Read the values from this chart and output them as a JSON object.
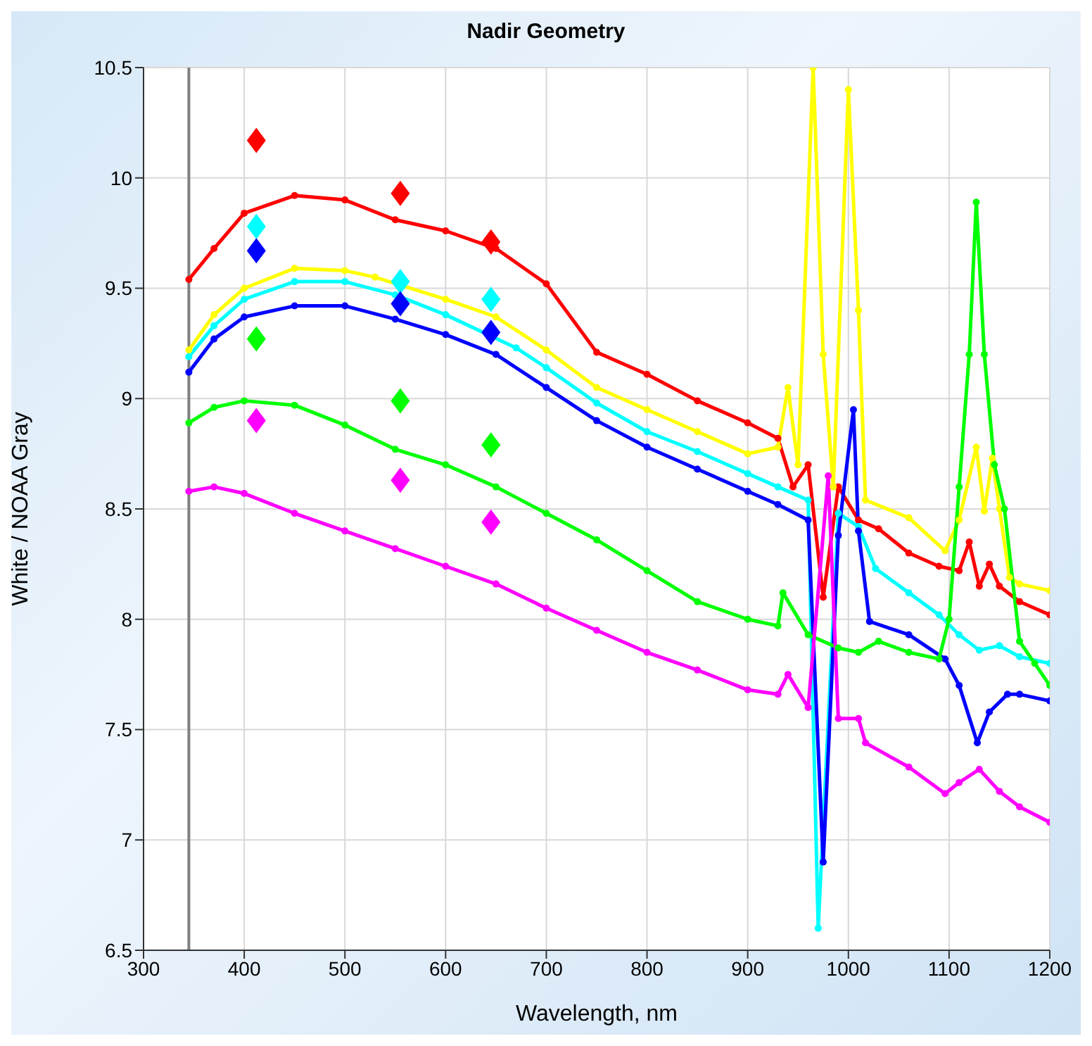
{
  "chart_data": {
    "type": "line",
    "title": "Nadir Geometry",
    "xlabel": "Wavelength, nm",
    "ylabel": "White / NOAA Gray",
    "xlim": [
      300,
      1200
    ],
    "ylim": [
      6.5,
      10.5
    ],
    "xticks": [
      300,
      400,
      500,
      600,
      700,
      800,
      900,
      1000,
      1100,
      1200
    ],
    "yticks": [
      6.5,
      7,
      7.5,
      8,
      8.5,
      9,
      9.5,
      10,
      10.5
    ],
    "grid": true,
    "legend": false,
    "marker": "circle",
    "line_style": "solid",
    "ref_lines": [
      {
        "axis": "x",
        "value": 345,
        "label": null,
        "color": "#808080"
      }
    ],
    "series": [
      {
        "color": "#ff0000",
        "x": [
          345,
          370,
          400,
          450,
          500,
          550,
          600,
          650,
          700,
          750,
          800,
          850,
          900,
          930,
          945,
          960,
          975,
          990,
          1010,
          1030,
          1060,
          1090,
          1110,
          1120,
          1130,
          1140,
          1150,
          1170,
          1200
        ],
        "values": [
          9.54,
          9.68,
          9.84,
          9.92,
          9.9,
          9.81,
          9.76,
          9.68,
          9.52,
          9.21,
          9.11,
          8.99,
          8.89,
          8.82,
          8.6,
          8.7,
          8.1,
          8.6,
          8.45,
          8.41,
          8.3,
          8.24,
          8.22,
          8.35,
          8.15,
          8.25,
          8.15,
          8.08,
          8.02
        ]
      },
      {
        "color": "#ffff00",
        "x": [
          345,
          370,
          400,
          450,
          500,
          530,
          600,
          650,
          700,
          750,
          800,
          850,
          900,
          930,
          940,
          950,
          965,
          975,
          985,
          1000,
          1010,
          1017,
          1060,
          1096,
          1110,
          1127,
          1135,
          1143,
          1150,
          1160,
          1170,
          1200
        ],
        "values": [
          9.22,
          9.38,
          9.5,
          9.59,
          9.58,
          9.55,
          9.45,
          9.37,
          9.22,
          9.05,
          8.95,
          8.85,
          8.75,
          8.78,
          9.05,
          8.7,
          10.5,
          9.2,
          8.6,
          10.4,
          9.4,
          8.54,
          8.46,
          8.31,
          8.45,
          8.78,
          8.49,
          8.73,
          8.5,
          8.19,
          8.16,
          8.13
        ]
      },
      {
        "color": "#00ffff",
        "x": [
          345,
          370,
          400,
          450,
          500,
          550,
          600,
          670,
          700,
          750,
          800,
          850,
          900,
          930,
          960,
          970,
          990,
          1010,
          1027,
          1060,
          1090,
          1110,
          1130,
          1150,
          1170,
          1200
        ],
        "values": [
          9.19,
          9.33,
          9.45,
          9.53,
          9.53,
          9.47,
          9.38,
          9.23,
          9.14,
          8.98,
          8.85,
          8.76,
          8.66,
          8.6,
          8.54,
          6.6,
          8.48,
          8.42,
          8.23,
          8.12,
          8.02,
          7.93,
          7.86,
          7.88,
          7.83,
          7.8
        ]
      },
      {
        "color": "#0000ff",
        "x": [
          345,
          370,
          400,
          450,
          500,
          550,
          600,
          650,
          700,
          750,
          800,
          850,
          900,
          930,
          960,
          975,
          990,
          1005,
          1010,
          1021,
          1060,
          1096,
          1110,
          1128,
          1140,
          1158,
          1170,
          1200
        ],
        "values": [
          9.12,
          9.27,
          9.37,
          9.42,
          9.42,
          9.36,
          9.29,
          9.2,
          9.05,
          8.9,
          8.78,
          8.68,
          8.58,
          8.52,
          8.45,
          6.9,
          8.38,
          8.95,
          8.4,
          7.99,
          7.93,
          7.82,
          7.7,
          7.44,
          7.58,
          7.66,
          7.66,
          7.63
        ]
      },
      {
        "color": "#00ff00",
        "x": [
          345,
          370,
          400,
          450,
          500,
          550,
          600,
          650,
          700,
          750,
          800,
          850,
          900,
          930,
          935,
          960,
          990,
          1010,
          1030,
          1060,
          1090,
          1100,
          1110,
          1120,
          1127,
          1135,
          1145,
          1155,
          1170,
          1185,
          1200
        ],
        "values": [
          8.89,
          8.96,
          8.99,
          8.97,
          8.88,
          8.77,
          8.7,
          8.6,
          8.48,
          8.36,
          8.22,
          8.08,
          8.0,
          7.97,
          8.12,
          7.93,
          7.87,
          7.85,
          7.9,
          7.85,
          7.82,
          8.0,
          8.6,
          9.2,
          9.89,
          9.2,
          8.7,
          8.5,
          7.9,
          7.8,
          7.7
        ]
      },
      {
        "color": "#ff00ff",
        "x": [
          345,
          370,
          400,
          450,
          500,
          550,
          600,
          650,
          700,
          750,
          800,
          850,
          900,
          930,
          940,
          960,
          980,
          990,
          1010,
          1017,
          1060,
          1096,
          1110,
          1130,
          1150,
          1170,
          1200
        ],
        "values": [
          8.58,
          8.6,
          8.57,
          8.48,
          8.4,
          8.32,
          8.24,
          8.16,
          8.05,
          7.95,
          7.85,
          7.77,
          7.68,
          7.66,
          7.75,
          7.6,
          8.65,
          7.55,
          7.55,
          7.44,
          7.33,
          7.21,
          7.26,
          7.32,
          7.22,
          7.15,
          7.08
        ]
      },
      {
        "type": "scatter",
        "marker": "diamond",
        "color": "#ff0000",
        "x": [
          412,
          555,
          645
        ],
        "values": [
          10.17,
          9.93,
          9.71
        ]
      },
      {
        "type": "scatter",
        "marker": "diamond",
        "color": "#00ffff",
        "x": [
          412,
          555,
          645
        ],
        "values": [
          9.78,
          9.53,
          9.45
        ]
      },
      {
        "type": "scatter",
        "marker": "diamond",
        "color": "#0000ff",
        "x": [
          412,
          555,
          645
        ],
        "values": [
          9.67,
          9.43,
          9.3
        ]
      },
      {
        "type": "scatter",
        "marker": "diamond",
        "color": "#00ff00",
        "x": [
          412,
          555,
          645
        ],
        "values": [
          9.27,
          8.99,
          8.79
        ]
      },
      {
        "type": "scatter",
        "marker": "diamond",
        "color": "#ff00ff",
        "x": [
          412,
          555,
          645
        ],
        "values": [
          8.9,
          8.63,
          8.44
        ]
      }
    ]
  }
}
